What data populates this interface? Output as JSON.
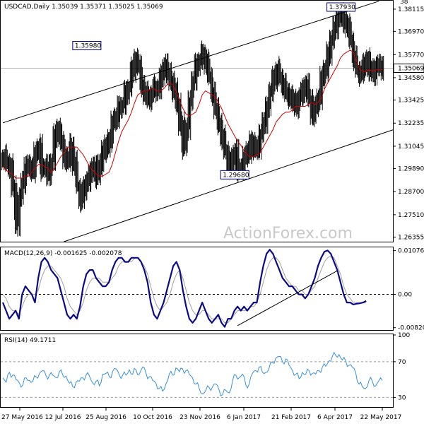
{
  "chart_data": [
    {
      "type": "line",
      "title": "USDCAD,Daily  1.35039 1.35371 1.35025 1.35069",
      "symbol": "USDCAD",
      "timeframe": "Daily",
      "ohlc": {
        "open": 1.35039,
        "high": 1.35371,
        "low": 1.35025,
        "close": 1.35069
      },
      "ylim": [
        1.2612,
        1.3855
      ],
      "y_ticks": [
        "1.38115",
        "1.36970",
        "1.35770",
        "1.34580",
        "1.33425",
        "1.32235",
        "1.31045",
        "1.29890",
        "1.28700",
        "1.27510",
        "1.26355"
      ],
      "current_price_label": "1.35069",
      "current_price": 1.35069,
      "top_partial_label": "38",
      "annotations": [
        {
          "text": "1.35980",
          "x": 27,
          "y": 1.3598
        },
        {
          "text": "1.29680",
          "x": 73,
          "y": 1.2968
        },
        {
          "text": "1.37930",
          "x": 110,
          "y": 1.3793
        }
      ],
      "channel": {
        "upper": {
          "x1": 0,
          "y1": 1.3225,
          "x2": 117,
          "y2": 1.3853
        },
        "lower": {
          "x1": 19,
          "y1": 1.2612,
          "x2": 130,
          "y2": 1.3238
        }
      },
      "series": [
        {
          "values": [
            1.305,
            1.302,
            1.3,
            1.29,
            1.27,
            1.283,
            1.292,
            1.3,
            1.3,
            1.298,
            1.306,
            1.31,
            1.299,
            1.3,
            1.296,
            1.302,
            1.316,
            1.319,
            1.312,
            1.305,
            1.303,
            1.311,
            1.302,
            1.29,
            1.283,
            1.288,
            1.293,
            1.296,
            1.3,
            1.295,
            1.301,
            1.308,
            1.31,
            1.314,
            1.322,
            1.326,
            1.33,
            1.332,
            1.338,
            1.34,
            1.35,
            1.355,
            1.352,
            1.342,
            1.338,
            1.335,
            1.337,
            1.341,
            1.34,
            1.346,
            1.352,
            1.349,
            1.343,
            1.34,
            1.332,
            1.322,
            1.31,
            1.32,
            1.333,
            1.345,
            1.352,
            1.355,
            1.358,
            1.354,
            1.346,
            1.338,
            1.33,
            1.322,
            1.315,
            1.308,
            1.3,
            1.303,
            1.308,
            1.298,
            1.3,
            1.304,
            1.308,
            1.312,
            1.309,
            1.31,
            1.316,
            1.323,
            1.33,
            1.339,
            1.345,
            1.35,
            1.346,
            1.342,
            1.338,
            1.336,
            1.334,
            1.331,
            1.335,
            1.339,
            1.342,
            1.336,
            1.327,
            1.33,
            1.336,
            1.345,
            1.35,
            1.358,
            1.365,
            1.372,
            1.376,
            1.378,
            1.375,
            1.372,
            1.366,
            1.356,
            1.35,
            1.348,
            1.352,
            1.355,
            1.35,
            1.348,
            1.351,
            1.352,
            1.3507
          ]
        },
        {
          "values": [
            1.3,
            1.298,
            1.297,
            1.296,
            1.294,
            1.294,
            1.294,
            1.295,
            1.295,
            1.297,
            1.299,
            1.301,
            1.301,
            1.3,
            1.299,
            1.297,
            1.299,
            1.302,
            1.305,
            1.307,
            1.31,
            1.31,
            1.31,
            1.31,
            1.308,
            1.306,
            1.303,
            1.3,
            1.298,
            1.296,
            1.295,
            1.295,
            1.296,
            1.297,
            1.301,
            1.307,
            1.313,
            1.318,
            1.321,
            1.324,
            1.328,
            1.333,
            1.337,
            1.338,
            1.339,
            1.339,
            1.34,
            1.34,
            1.339,
            1.339,
            1.34,
            1.342,
            1.343,
            1.342,
            1.338,
            1.334,
            1.33,
            1.327,
            1.326,
            1.327,
            1.328,
            1.332,
            1.337,
            1.339,
            1.338,
            1.337,
            1.336,
            1.333,
            1.33,
            1.326,
            1.322,
            1.319,
            1.316,
            1.313,
            1.311,
            1.308,
            1.306,
            1.305,
            1.305,
            1.306,
            1.307,
            1.31,
            1.313,
            1.316,
            1.319,
            1.323,
            1.325,
            1.327,
            1.328,
            1.328,
            1.329,
            1.331,
            1.331,
            1.331,
            1.331,
            1.332,
            1.333,
            1.332,
            1.333,
            1.335,
            1.34,
            1.343,
            1.346,
            1.349,
            1.352,
            1.356,
            1.358,
            1.359,
            1.36,
            1.359,
            1.354,
            1.35,
            1.349,
            1.349,
            1.35,
            1.349,
            1.35,
            1.35,
            1.35
          ]
        }
      ]
    },
    {
      "type": "line",
      "title": "MACD(12,26,9) -0.001625 -0.002078",
      "ylim": [
        -0.0086,
        0.0114
      ],
      "y_ticks": [
        "0.010768",
        "0.00",
        "-0.008203"
      ],
      "zero_label": "0.00",
      "trendline": {
        "x1": 73,
        "y1": -0.0077,
        "x2": 104,
        "y2": 0.0058
      },
      "series": [
        {
          "values": [
            -0.002,
            -0.004,
            -0.006,
            -0.005,
            -0.004,
            -0.006,
            0.0,
            0.002,
            0.001,
            0.0,
            -0.002,
            0.004,
            0.008,
            0.009,
            0.008,
            0.006,
            0.005,
            0.004,
            0.001,
            -0.002,
            -0.005,
            -0.006,
            -0.005,
            -0.006,
            -0.003,
            0.002,
            0.005,
            0.006,
            0.006,
            0.004,
            0.003,
            0.002,
            0.002,
            0.003,
            0.006,
            0.008,
            0.009,
            0.009,
            0.008,
            0.008,
            0.009,
            0.009,
            0.009,
            0.008,
            0.006,
            0.003,
            -0.002,
            -0.005,
            -0.006,
            -0.004,
            -0.002,
            0.001,
            0.004,
            0.007,
            0.008,
            0.006,
            0.001,
            -0.003,
            -0.006,
            -0.007,
            -0.006,
            -0.004,
            -0.002,
            -0.004,
            -0.006,
            -0.007,
            -0.006,
            -0.005,
            -0.007,
            -0.008,
            -0.006,
            -0.006,
            -0.004,
            -0.003,
            -0.004,
            -0.003,
            -0.004,
            -0.003,
            -0.002,
            -0.002,
            0.003,
            0.007,
            0.01,
            0.011,
            0.01,
            0.008,
            0.006,
            0.004,
            0.003,
            0.002,
            0.002,
            0.001,
            0.0,
            0.0,
            -0.001,
            0.0,
            0.002,
            0.004,
            0.007,
            0.009,
            0.0105,
            0.0108,
            0.01,
            0.008,
            0.006,
            0.003,
            0.0,
            -0.002,
            -0.002,
            -0.0025,
            -0.0023,
            -0.0022,
            -0.002,
            -0.0016
          ]
        },
        {
          "values": [
            0.0,
            -0.001,
            -0.003,
            -0.004,
            -0.004,
            -0.005,
            -0.003,
            -0.001,
            0.0,
            0.0,
            0.0,
            0.001,
            0.004,
            0.006,
            0.007,
            0.007,
            0.006,
            0.005,
            0.004,
            0.002,
            -0.001,
            -0.003,
            -0.004,
            -0.005,
            -0.004,
            -0.002,
            0.001,
            0.003,
            0.004,
            0.004,
            0.004,
            0.003,
            0.003,
            0.003,
            0.004,
            0.005,
            0.007,
            0.008,
            0.008,
            0.008,
            0.008,
            0.009,
            0.009,
            0.008,
            0.007,
            0.005,
            0.002,
            -0.001,
            -0.003,
            -0.004,
            -0.003,
            -0.002,
            0.0,
            0.003,
            0.005,
            0.006,
            0.004,
            0.001,
            -0.002,
            -0.004,
            -0.005,
            -0.005,
            -0.004,
            -0.004,
            -0.005,
            -0.006,
            -0.006,
            -0.006,
            -0.006,
            -0.007,
            -0.007,
            -0.006,
            -0.005,
            -0.004,
            -0.004,
            -0.004,
            -0.004,
            -0.003,
            -0.003,
            -0.002,
            0.0,
            0.003,
            0.006,
            0.008,
            0.009,
            0.009,
            0.008,
            0.006,
            0.004,
            0.003,
            0.002,
            0.002,
            0.001,
            0.001,
            0.0,
            0.0,
            0.001,
            0.002,
            0.004,
            0.006,
            0.008,
            0.009,
            0.0095,
            0.009,
            0.007,
            0.005,
            0.002,
            0.0,
            -0.001,
            -0.002,
            -0.002,
            -0.0021,
            -0.0021,
            -0.0021
          ]
        }
      ]
    },
    {
      "type": "line",
      "title": "RSI(14) 49.1711",
      "ylim": [
        20,
        100
      ],
      "y_ticks": [
        "100",
        "70",
        "30"
      ],
      "series": [
        {
          "values": [
            52,
            47,
            58,
            55,
            50,
            46,
            44,
            52,
            49,
            48,
            53,
            57,
            60,
            54,
            55,
            55,
            52,
            59,
            55,
            54,
            46,
            42,
            47,
            48,
            52,
            55,
            54,
            46,
            48,
            43,
            56,
            57,
            53,
            59,
            62,
            55,
            55,
            55,
            61,
            56,
            61,
            56,
            64,
            57,
            53,
            49,
            46,
            40,
            37,
            45,
            56,
            55,
            63,
            59,
            62,
            60,
            56,
            52,
            45,
            40,
            34,
            38,
            41,
            42,
            45,
            38,
            33,
            38,
            35,
            48,
            55,
            52,
            56,
            44,
            45,
            57,
            60,
            64,
            58,
            58,
            63,
            69,
            74,
            76,
            70,
            73,
            66,
            60,
            56,
            51,
            58,
            56,
            60,
            57,
            56,
            60,
            64,
            65,
            71,
            76,
            77,
            78,
            72,
            71,
            66,
            64,
            58,
            45,
            42,
            40,
            49,
            48,
            43,
            49,
            49
          ]
        }
      ]
    }
  ],
  "x_ticks": [
    "27 May 2016",
    "12 Jul 2016",
    "25 Aug 2016",
    "10 Oct 2016",
    "23 Nov 2016",
    "6 Jan 2017",
    "21 Feb 2017",
    "6 Apr 2017",
    "22 May 2017"
  ],
  "watermark": "ActionForex.com",
  "colors": {
    "price": "#000000",
    "moving_average": "#cc0000",
    "macd_line": "#0b0b85",
    "signal_line": "#a0a0a0",
    "rsi": "#3a8fd8",
    "channel": "#000000",
    "label_box": "#00007a"
  }
}
